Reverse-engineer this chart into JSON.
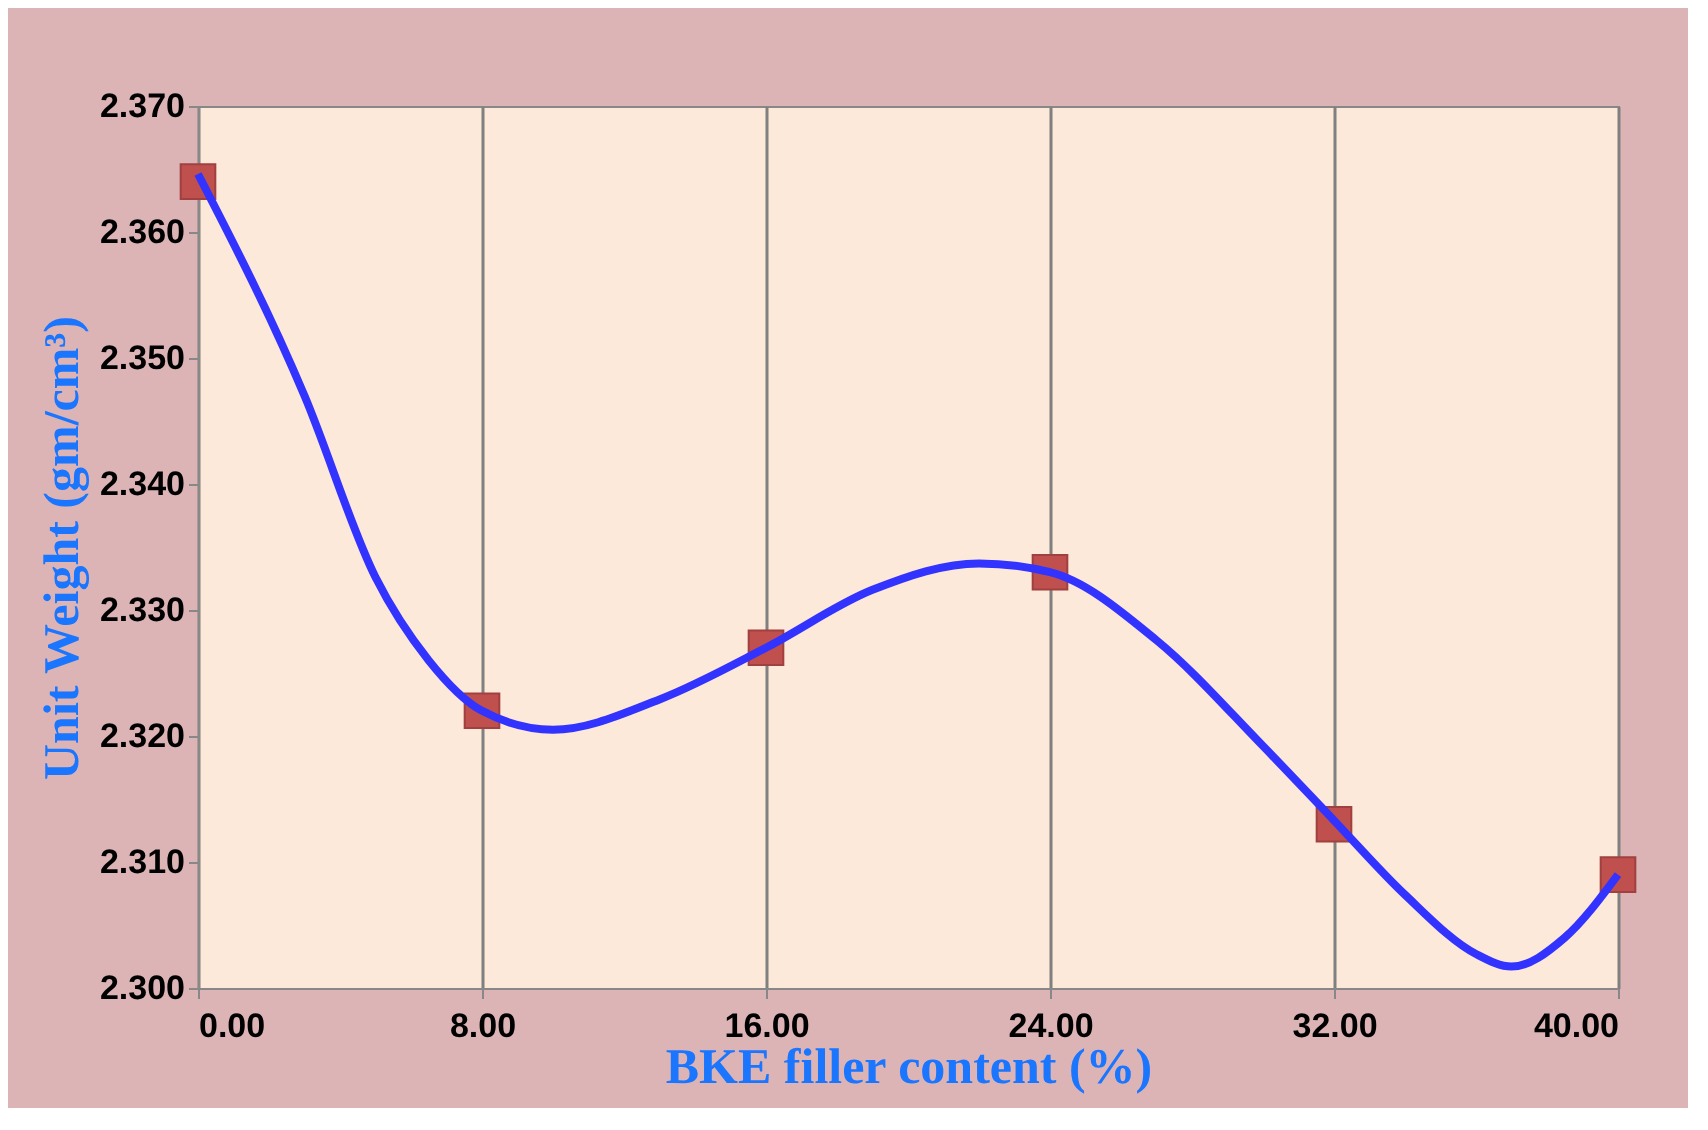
{
  "chart_data": {
    "type": "scatter",
    "xlabel": "BKE filler content (%)",
    "ylabel": "Unit Weight (gm/cm³)",
    "xlim": [
      0,
      40
    ],
    "ylim": [
      2.3,
      2.37
    ],
    "xticks": [
      {
        "value": 0,
        "label": "0.00"
      },
      {
        "value": 8,
        "label": "8.00"
      },
      {
        "value": 16,
        "label": "16.00"
      },
      {
        "value": 24,
        "label": "24.00"
      },
      {
        "value": 32,
        "label": "32.00"
      },
      {
        "value": 40,
        "label": "40.00"
      }
    ],
    "yticks": [
      {
        "value": 2.3,
        "label": "2.300"
      },
      {
        "value": 2.31,
        "label": "2.310"
      },
      {
        "value": 2.32,
        "label": "2.320"
      },
      {
        "value": 2.33,
        "label": "2.330"
      },
      {
        "value": 2.34,
        "label": "2.340"
      },
      {
        "value": 2.35,
        "label": "2.350"
      },
      {
        "value": 2.36,
        "label": "2.360"
      },
      {
        "value": 2.37,
        "label": "2.370"
      }
    ],
    "grid": "x",
    "legend": false,
    "series": [
      {
        "type": "line",
        "color": "#3333ff",
        "marker": "none",
        "line_style": "solid",
        "x": [
          0,
          3,
          5,
          6.5,
          8,
          10,
          13,
          16,
          19,
          22,
          24,
          27,
          30,
          32,
          34,
          36,
          37,
          38.5,
          40
        ],
        "values": [
          2.3646,
          2.347,
          2.3326,
          2.326,
          2.322,
          2.3205,
          2.3229,
          2.327,
          2.3316,
          2.3337,
          2.333,
          2.3276,
          2.3192,
          2.3133,
          2.3074,
          2.3027,
          2.3017,
          2.304,
          2.309
        ]
      },
      {
        "color": "#c0504d",
        "marker": "square",
        "x": [
          0,
          8,
          16,
          24,
          32,
          40
        ],
        "values": [
          2.364,
          2.322,
          2.327,
          2.333,
          2.313,
          2.309
        ]
      }
    ]
  }
}
